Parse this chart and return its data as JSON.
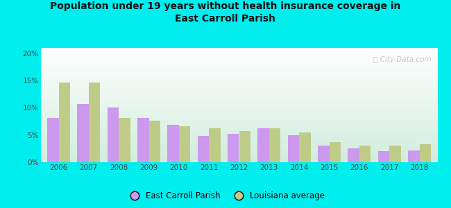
{
  "title": "Population under 19 years without health insurance coverage in\nEast Carroll Parish",
  "years": [
    2006,
    2007,
    2008,
    2009,
    2010,
    2011,
    2012,
    2013,
    2014,
    2015,
    2016,
    2017,
    2018
  ],
  "parish_values": [
    8.1,
    10.7,
    10.0,
    8.1,
    6.9,
    4.9,
    5.2,
    6.2,
    5.0,
    3.0,
    2.6,
    2.1,
    2.2
  ],
  "la_values": [
    14.6,
    14.7,
    8.2,
    7.6,
    6.6,
    6.2,
    5.7,
    6.3,
    5.5,
    3.7,
    3.1,
    3.0,
    3.3
  ],
  "parish_color": "#cc99ee",
  "la_color": "#bfcc88",
  "background_color": "#00eeee",
  "plot_bg_topleft": "#ddf5e8",
  "plot_bg_topright": "#ffffff",
  "plot_bg_bottom": "#d5eedd",
  "ylim": [
    0,
    21
  ],
  "yticks": [
    0,
    5,
    10,
    15,
    20
  ],
  "ytick_labels": [
    "0%",
    "5%",
    "10%",
    "15%",
    "20%"
  ],
  "bar_width": 0.38,
  "legend_parish": "East Carroll Parish",
  "legend_la": "Louisiana average",
  "watermark": "ⓘ City-Data.com",
  "title_color": "#111111",
  "tick_color": "#444444"
}
